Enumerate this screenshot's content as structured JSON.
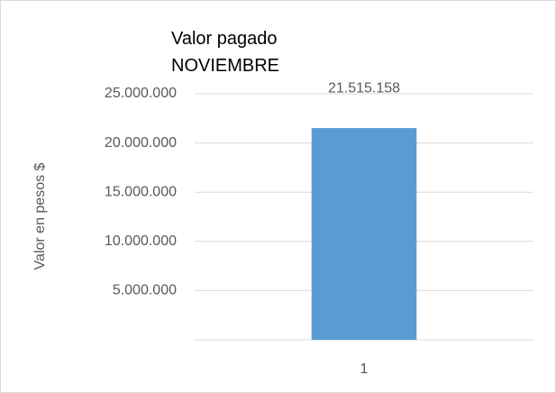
{
  "chart_data": {
    "type": "bar",
    "title": "Valor pagado NOVIEMBRE",
    "y_label": "Valor en pesos $",
    "categories": [
      "1"
    ],
    "values": [
      21515158
    ],
    "value_labels": [
      "21.515.158"
    ],
    "color": "#5b9bd5",
    "ylim": [
      0,
      25000000
    ],
    "yticks": [
      {
        "value": 5000000,
        "label": "5.000.000"
      },
      {
        "value": 10000000,
        "label": "10.000.000"
      },
      {
        "value": 15000000,
        "label": "15.000.000"
      },
      {
        "value": 20000000,
        "label": "20.000.000"
      },
      {
        "value": 25000000,
        "label": "25.000.000"
      }
    ],
    "grid": true
  }
}
